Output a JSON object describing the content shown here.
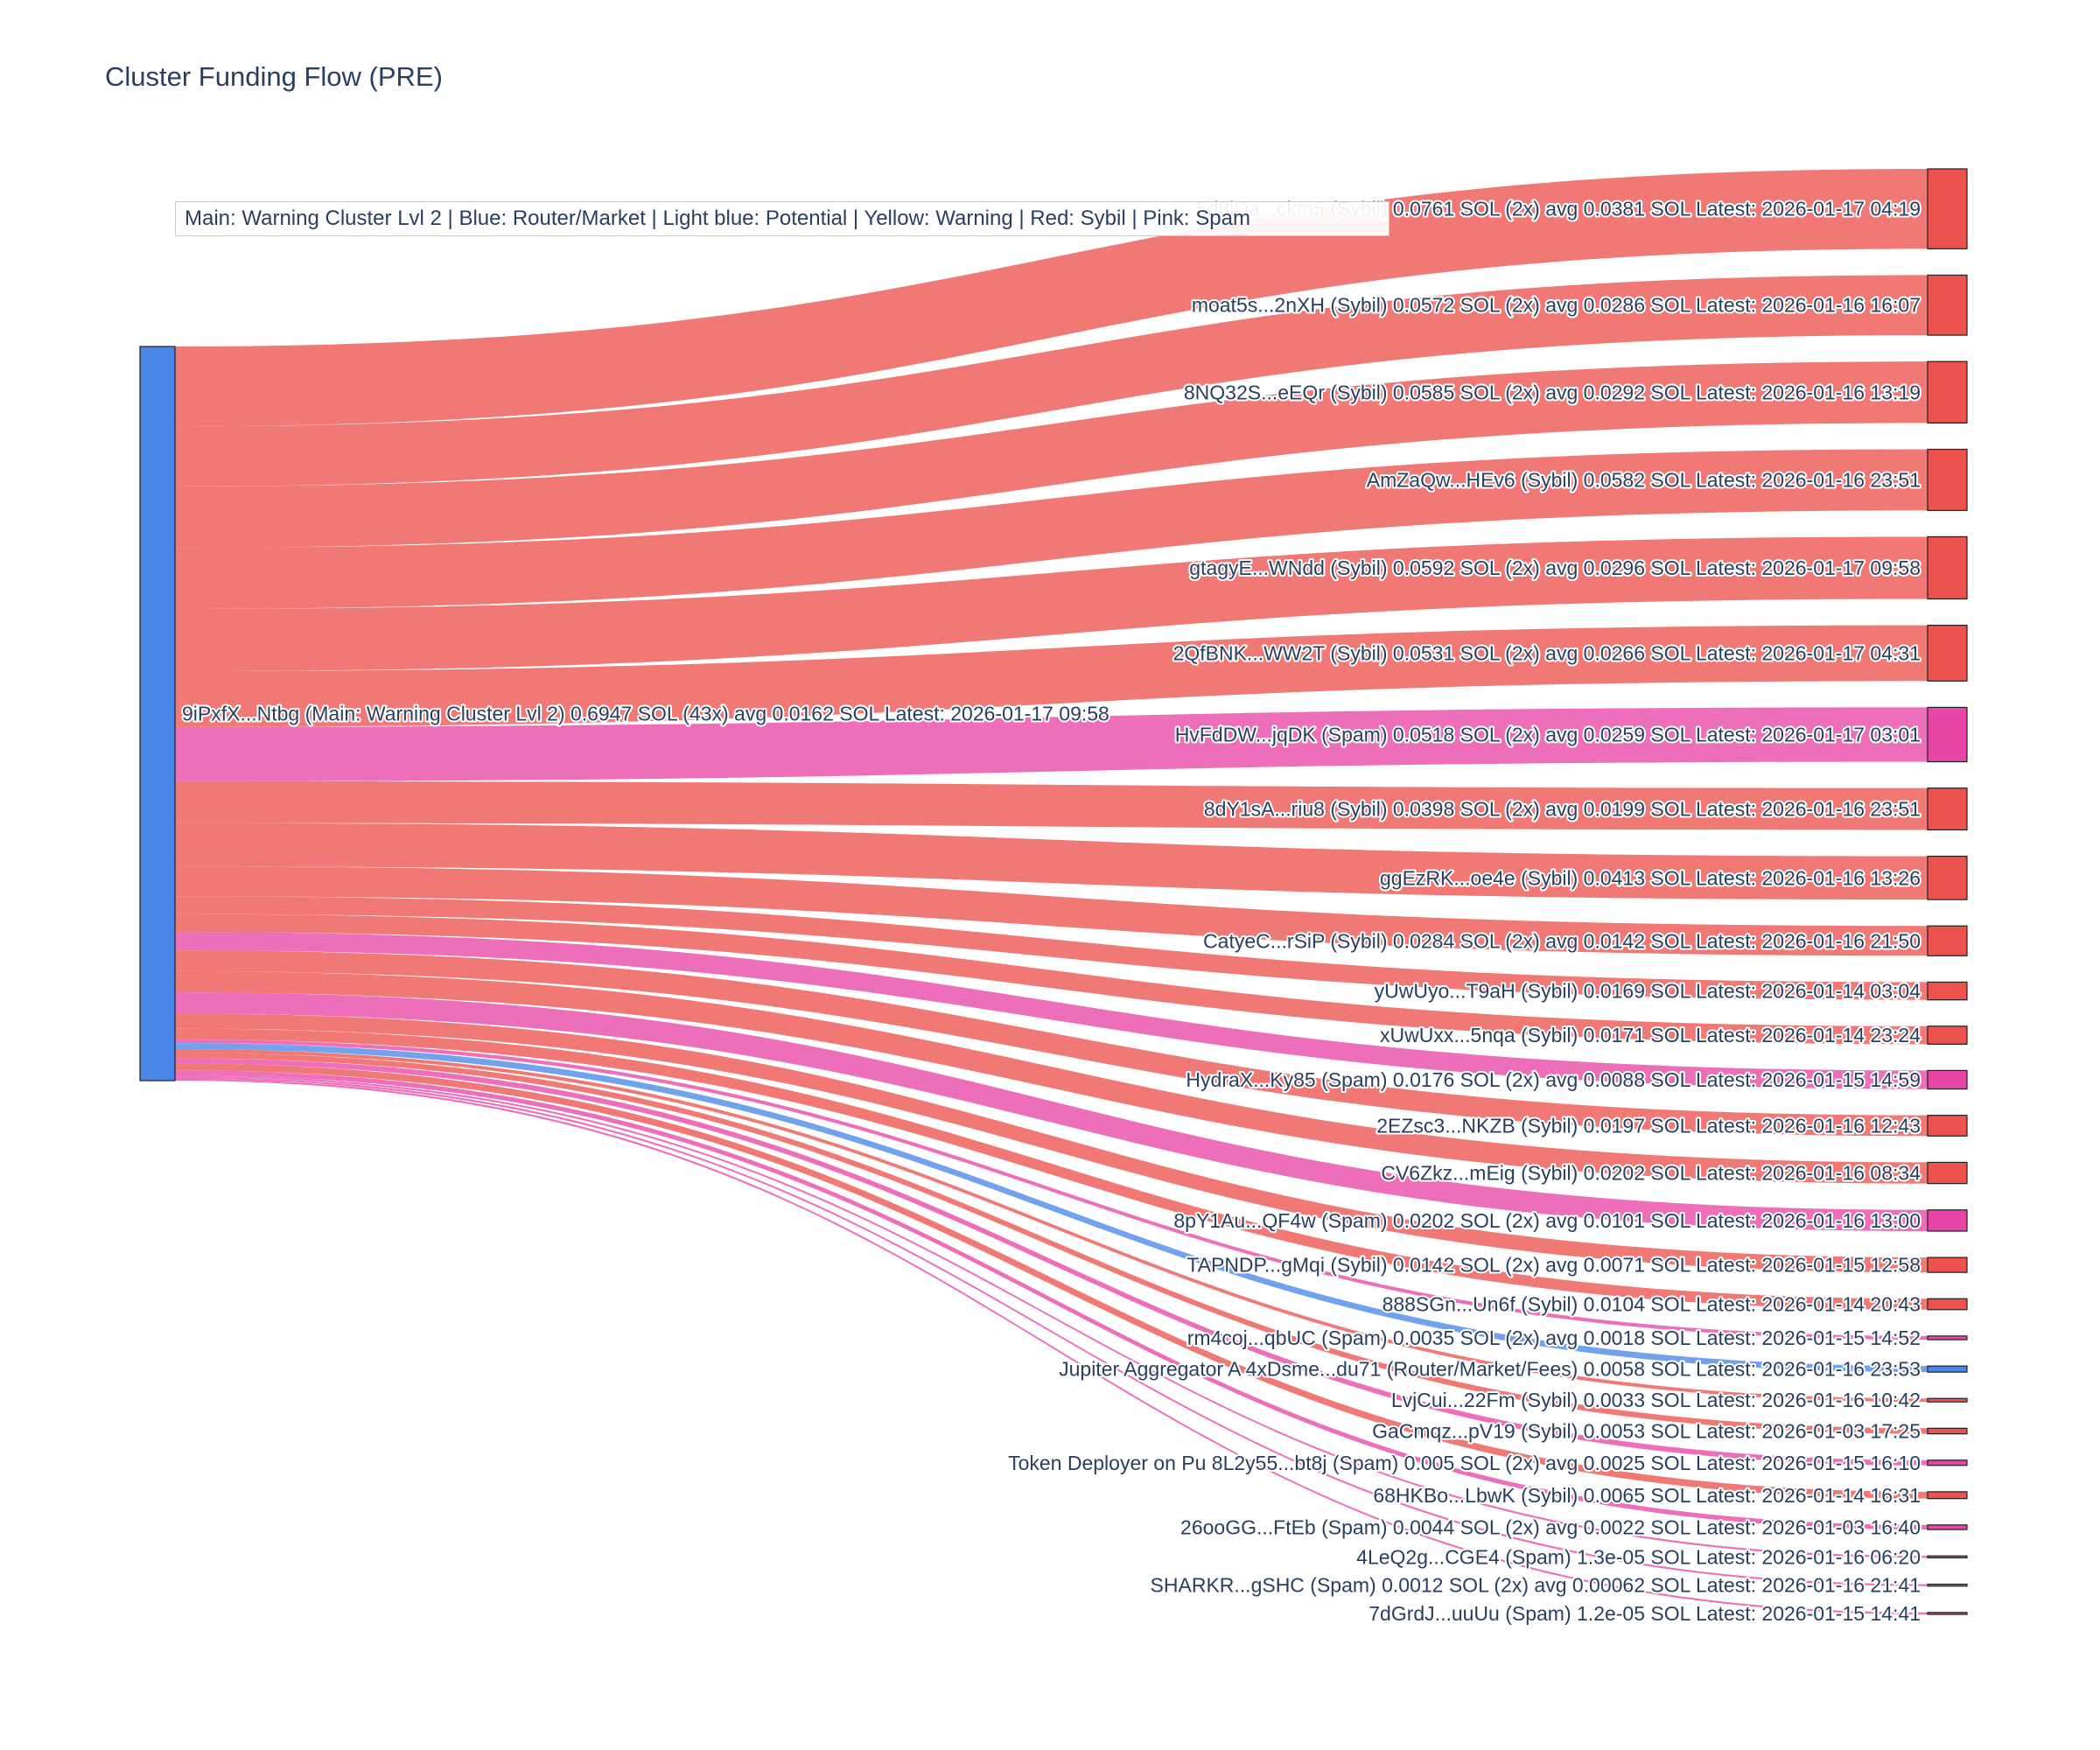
{
  "title": "Cluster Funding Flow (PRE)",
  "legend_text": "Main: Warning Cluster Lvl 2  |  Blue: Router/Market | Light blue: Potential | Yellow: Warning | Red: Sybil | Pink: Spam",
  "chart_data": {
    "type": "sankey",
    "title": "Cluster Funding Flow (PRE)",
    "annotation": "Main: Warning Cluster Lvl 2  |  Blue: Router/Market | Light blue: Potential | Yellow: Warning | Red: Sybil | Pink: Spam",
    "unit": "SOL",
    "colors": {
      "main": "#4A86E8",
      "sybil": "#ED534E",
      "spam": "#E846A6",
      "router": "#4A86E8",
      "label": "#2a3f5f"
    },
    "source_node": {
      "label": "9iPxfX...Ntbg (Main: Warning Cluster Lvl 2) 0.6947 SOL (43x) avg 0.0162 SOL Latest: 2026-01-17 09:58",
      "name": "9iPxfX...Ntbg",
      "category": "Main: Warning Cluster Lvl 2",
      "total_sol": 0.6947,
      "tx_count": "43x",
      "avg_sol": 0.0162,
      "latest": "2026-01-17 09:58",
      "type": "main"
    },
    "flows": [
      {
        "label": "5d8iDa...ckm5 (Sybil) 0.0761 SOL (2x) avg 0.0381 SOL Latest: 2026-01-17 04:19",
        "value": 0.0761,
        "type": "sybil"
      },
      {
        "label": "moat5s...2nXH (Sybil) 0.0572 SOL (2x) avg 0.0286 SOL Latest: 2026-01-16 16:07",
        "value": 0.0572,
        "type": "sybil"
      },
      {
        "label": "8NQ32S...eEQr (Sybil) 0.0585 SOL (2x) avg 0.0292 SOL Latest: 2026-01-16 13:19",
        "value": 0.0585,
        "type": "sybil"
      },
      {
        "label": "AmZaQw...HEv6 (Sybil) 0.0582 SOL Latest: 2026-01-16 23:51",
        "value": 0.0582,
        "type": "sybil"
      },
      {
        "label": "gtagyE...WNdd (Sybil) 0.0592 SOL (2x) avg 0.0296 SOL Latest: 2026-01-17 09:58",
        "value": 0.0592,
        "type": "sybil"
      },
      {
        "label": "2QfBNK...WW2T (Sybil) 0.0531 SOL (2x) avg 0.0266 SOL Latest: 2026-01-17 04:31",
        "value": 0.0531,
        "type": "sybil"
      },
      {
        "label": "HvFdDW...jqDK (Spam) 0.0518 SOL (2x) avg 0.0259 SOL Latest: 2026-01-17 03:01",
        "value": 0.0518,
        "type": "spam"
      },
      {
        "label": "8dY1sA...riu8 (Sybil) 0.0398 SOL (2x) avg 0.0199 SOL Latest: 2026-01-16 23:51",
        "value": 0.0398,
        "type": "sybil"
      },
      {
        "label": "ggEzRK...oe4e (Sybil) 0.0413 SOL Latest: 2026-01-16 13:26",
        "value": 0.0413,
        "type": "sybil"
      },
      {
        "label": "CatyeC...rSiP (Sybil) 0.0284 SOL (2x) avg 0.0142 SOL Latest: 2026-01-16 21:50",
        "value": 0.0284,
        "type": "sybil"
      },
      {
        "label": "yUwUyo...T9aH (Sybil) 0.0169 SOL Latest: 2026-01-14 03:04",
        "value": 0.0169,
        "type": "sybil"
      },
      {
        "label": "xUwUxx...5nqa (Sybil) 0.0171 SOL Latest: 2026-01-14 23:24",
        "value": 0.0171,
        "type": "sybil"
      },
      {
        "label": "HydraX...Ky85 (Spam) 0.0176 SOL (2x) avg 0.0088 SOL Latest: 2026-01-15 14:59",
        "value": 0.0176,
        "type": "spam"
      },
      {
        "label": "2EZsc3...NKZB (Sybil) 0.0197 SOL Latest: 2026-01-16 12:43",
        "value": 0.0197,
        "type": "sybil"
      },
      {
        "label": "CV6Zkz...mEig (Sybil) 0.0202 SOL Latest: 2026-01-16 08:34",
        "value": 0.0202,
        "type": "sybil"
      },
      {
        "label": "8pY1Au...QF4w (Spam) 0.0202 SOL (2x) avg 0.0101 SOL Latest: 2026-01-16 13:00",
        "value": 0.0202,
        "type": "spam"
      },
      {
        "label": "TAPNDP...gMqi (Sybil) 0.0142 SOL (2x) avg 0.0071 SOL Latest: 2026-01-15 12:58",
        "value": 0.0142,
        "type": "sybil"
      },
      {
        "label": "888SGn...Un6f (Sybil) 0.0104 SOL Latest: 2026-01-14 20:43",
        "value": 0.0104,
        "type": "sybil"
      },
      {
        "label": "rm4coj...qbUC (Spam) 0.0035 SOL (2x) avg 0.0018 SOL Latest: 2026-01-15 14:52",
        "value": 0.0035,
        "type": "spam"
      },
      {
        "label": "Jupiter Aggregator A 4xDsme...du71 (Router/Market/Fees) 0.0058 SOL Latest: 2026-01-16 23:53",
        "value": 0.0058,
        "type": "router"
      },
      {
        "label": "LvjCui...22Fm (Sybil) 0.0033 SOL Latest: 2026-01-16 10:42",
        "value": 0.0033,
        "type": "sybil"
      },
      {
        "label": "GaCmqz...pV19 (Sybil) 0.0053 SOL Latest: 2026-01-03 17:25",
        "value": 0.0053,
        "type": "sybil"
      },
      {
        "label": "Token Deployer on Pu 8L2y55...bt8j (Spam) 0.005 SOL (2x) avg 0.0025 SOL Latest: 2026-01-15 16:10",
        "value": 0.005,
        "type": "spam"
      },
      {
        "label": "68HKBo...LbwK (Sybil) 0.0065 SOL Latest: 2026-01-14 16:31",
        "value": 0.0065,
        "type": "sybil"
      },
      {
        "label": "26ooGG...FtEb (Spam) 0.0044 SOL (2x) avg 0.0022 SOL Latest: 2026-01-03 16:40",
        "value": 0.0044,
        "type": "spam"
      },
      {
        "label": "4LeQ2g...CGE4 (Spam) 1.3e-05 SOL Latest: 2026-01-16 06:20",
        "value": 1.3e-05,
        "type": "spam"
      },
      {
        "label": "SHARKR...gSHC (Spam) 0.0012 SOL (2x) avg 0.00062 SOL Latest: 2026-01-16 21:41",
        "value": 0.0012,
        "type": "spam"
      },
      {
        "label": "7dGrdJ...uuUu (Spam) 1.2e-05 SOL Latest: 2026-01-15 14:41",
        "value": 1.2e-05,
        "type": "spam"
      }
    ]
  }
}
